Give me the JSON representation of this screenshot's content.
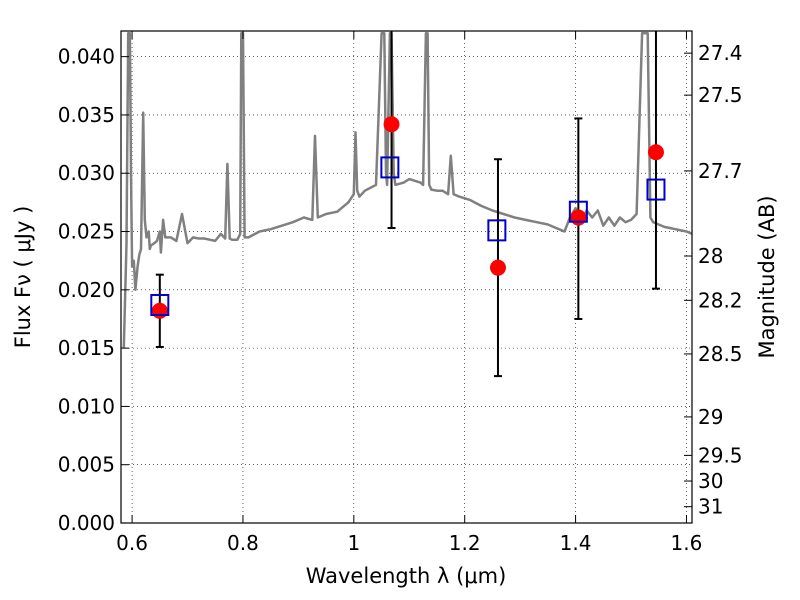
{
  "chart_data": {
    "type": "line",
    "xlabel": "Wavelength  λ (μm)",
    "ylabel": "Flux  Fν  ( μJy )",
    "y2label": "Magnitude (AB)",
    "xlim": [
      0.58,
      1.61
    ],
    "ylim": [
      0.0,
      0.0422
    ],
    "grid": true,
    "x_ticks": [
      0.6,
      0.8,
      1.0,
      1.2,
      1.4,
      1.6
    ],
    "x_tick_labels": [
      "0.6",
      "0.8",
      "1",
      "1.2",
      "1.4",
      "1.6"
    ],
    "y_ticks": [
      0.0,
      0.005,
      0.01,
      0.015,
      0.02,
      0.025,
      0.03,
      0.035,
      0.04
    ],
    "y_tick_labels": [
      "0.000",
      "0.005",
      "0.010",
      "0.015",
      "0.020",
      "0.025",
      "0.030",
      "0.035",
      "0.040"
    ],
    "y2_ticks": [
      {
        "label": "27.4",
        "flux": 0.0403
      },
      {
        "label": "27.5",
        "flux": 0.0367
      },
      {
        "label": "27.7",
        "flux": 0.0302
      },
      {
        "label": "28",
        "flux": 0.0229
      },
      {
        "label": "28.2",
        "flux": 0.0191
      },
      {
        "label": "28.5",
        "flux": 0.0145
      },
      {
        "label": "29",
        "flux": 0.0091
      },
      {
        "label": "29.5",
        "flux": 0.0058
      },
      {
        "label": "30",
        "flux": 0.0036
      },
      {
        "label": "31",
        "flux": 0.0014
      }
    ],
    "series": [
      {
        "kind": "model-spectrum",
        "color": "#808080",
        "x": [
          0.585,
          0.59,
          0.593,
          0.596,
          0.598,
          0.6,
          0.603,
          0.606,
          0.61,
          0.613,
          0.616,
          0.62,
          0.623,
          0.626,
          0.63,
          0.632,
          0.634,
          0.64,
          0.645,
          0.65,
          0.652,
          0.656,
          0.66,
          0.67,
          0.68,
          0.69,
          0.7,
          0.71,
          0.72,
          0.73,
          0.74,
          0.75,
          0.76,
          0.768,
          0.772,
          0.776,
          0.78,
          0.79,
          0.795,
          0.797,
          0.8,
          0.803,
          0.81,
          0.83,
          0.85,
          0.87,
          0.89,
          0.91,
          0.925,
          0.93,
          0.935,
          0.95,
          0.97,
          0.99,
          1.0,
          1.003,
          1.006,
          1.01,
          1.02,
          1.04,
          1.05,
          1.055,
          1.058,
          1.06,
          1.065,
          1.068,
          1.072,
          1.075,
          1.09,
          1.1,
          1.12,
          1.125,
          1.13,
          1.133,
          1.136,
          1.14,
          1.15,
          1.16,
          1.17,
          1.175,
          1.18,
          1.19,
          1.21,
          1.23,
          1.25,
          1.27,
          1.29,
          1.31,
          1.33,
          1.35,
          1.36,
          1.37,
          1.38,
          1.39,
          1.4,
          1.41,
          1.42,
          1.43,
          1.44,
          1.45,
          1.46,
          1.47,
          1.48,
          1.49,
          1.5,
          1.51,
          1.52,
          1.525,
          1.53,
          1.535,
          1.54,
          1.55,
          1.56,
          1.57,
          1.58,
          1.59,
          1.6,
          1.61
        ],
        "values": [
          0.015,
          0.024,
          0.042,
          0.042,
          0.03,
          0.022,
          0.0225,
          0.02,
          0.022,
          0.023,
          0.0235,
          0.0352,
          0.026,
          0.0245,
          0.025,
          0.0235,
          0.0238,
          0.024,
          0.0242,
          0.025,
          0.0232,
          0.026,
          0.0245,
          0.0245,
          0.0242,
          0.0265,
          0.024,
          0.0245,
          0.0244,
          0.0244,
          0.0243,
          0.0242,
          0.0248,
          0.0244,
          0.0308,
          0.0244,
          0.0243,
          0.0243,
          0.0248,
          0.042,
          0.042,
          0.0245,
          0.0245,
          0.025,
          0.0252,
          0.0255,
          0.0258,
          0.0262,
          0.026,
          0.0332,
          0.0262,
          0.0265,
          0.0267,
          0.0275,
          0.0282,
          0.0335,
          0.0285,
          0.028,
          0.0285,
          0.029,
          0.042,
          0.042,
          0.03,
          0.029,
          0.042,
          0.042,
          0.03,
          0.029,
          0.0292,
          0.0295,
          0.0292,
          0.029,
          0.042,
          0.042,
          0.029,
          0.0286,
          0.0285,
          0.0285,
          0.0282,
          0.0315,
          0.0282,
          0.028,
          0.0277,
          0.0272,
          0.0268,
          0.0265,
          0.0262,
          0.026,
          0.0258,
          0.0256,
          0.0254,
          0.0252,
          0.025,
          0.0262,
          0.027,
          0.0258,
          0.0268,
          0.0262,
          0.0268,
          0.0255,
          0.0262,
          0.0255,
          0.0262,
          0.0258,
          0.026,
          0.0265,
          0.042,
          0.042,
          0.042,
          0.0262,
          0.0258,
          0.0256,
          0.0254,
          0.0253,
          0.0252,
          0.0251,
          0.025,
          0.0248
        ]
      },
      {
        "kind": "observed-flux",
        "color": "#ff0000",
        "marker": "circle",
        "x": [
          0.65,
          1.068,
          1.26,
          1.405,
          1.545
        ],
        "values": [
          0.0182,
          0.0342,
          0.0219,
          0.0262,
          0.0318
        ],
        "err_low": [
          0.0151,
          0.0253,
          0.0126,
          0.0175,
          0.0201
        ],
        "err_high": [
          0.0213,
          0.0422,
          0.0312,
          0.0347,
          0.0422
        ]
      },
      {
        "kind": "model-band-flux",
        "color": "#0000cc",
        "marker": "square",
        "x": [
          0.65,
          1.065,
          1.258,
          1.405,
          1.545
        ],
        "values": [
          0.0187,
          0.0305,
          0.0251,
          0.0267,
          0.0286
        ]
      }
    ]
  }
}
